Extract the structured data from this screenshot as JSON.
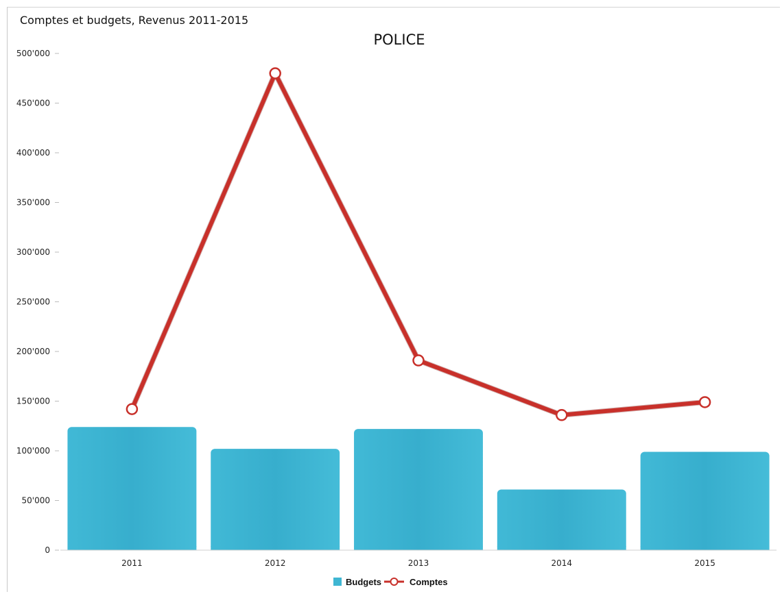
{
  "header": {
    "title": "Comptes et budgets, Revenus 2011-2015"
  },
  "chart_data": {
    "type": "bar",
    "title": "POLICE",
    "xlabel": "",
    "ylabel": "",
    "categories": [
      "2011",
      "2012",
      "2013",
      "2014",
      "2015"
    ],
    "series": [
      {
        "name": "Budgets",
        "type": "bar",
        "color": "#3fb6d2",
        "values": [
          124000,
          102000,
          122000,
          61000,
          99000
        ]
      },
      {
        "name": "Comptes",
        "type": "line",
        "color": "#c8302a",
        "marker_fill": "#ffffff",
        "values": [
          142000,
          480000,
          191000,
          136000,
          149000
        ]
      }
    ],
    "ylim": [
      0,
      500000
    ],
    "yticks": [
      0,
      50000,
      100000,
      150000,
      200000,
      250000,
      300000,
      350000,
      400000,
      450000,
      500000
    ],
    "ytick_labels": [
      "0",
      "50'000",
      "100'000",
      "150'000",
      "200'000",
      "250'000",
      "300'000",
      "350'000",
      "400'000",
      "450'000",
      "500'000"
    ],
    "grid": false,
    "legend": {
      "position": "bottom-center",
      "entries": [
        "Budgets",
        "Comptes"
      ]
    }
  }
}
